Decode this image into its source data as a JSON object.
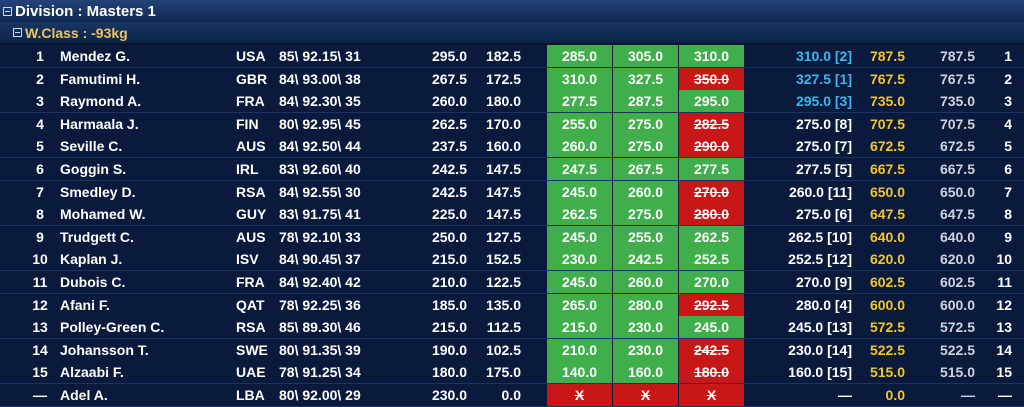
{
  "header": {
    "division": "Division : Masters 1",
    "weight_class": "W.Class : -93kg"
  },
  "table": {
    "rows": [
      {
        "rank": "1",
        "name": "Mendez G.",
        "country": "USA",
        "info": "85\\ 92.15\\ 31",
        "squat": "295.0",
        "bench": "182.5",
        "deadlift": [
          {
            "text": "285.0",
            "result": "good"
          },
          {
            "text": "305.0",
            "result": "good"
          },
          {
            "text": "310.0",
            "result": "good"
          }
        ],
        "best": "310.0 [2]",
        "highlight": true,
        "total": "787.5",
        "total2": "787.5",
        "place": "1"
      },
      {
        "rank": "2",
        "name": "Famutimi H.",
        "country": "GBR",
        "info": "84\\ 93.00\\ 38",
        "squat": "267.5",
        "bench": "172.5",
        "deadlift": [
          {
            "text": "310.0",
            "result": "good"
          },
          {
            "text": "327.5",
            "result": "good"
          },
          {
            "text": "350.0",
            "result": "fail"
          }
        ],
        "best": "327.5 [1]",
        "highlight": true,
        "total": "767.5",
        "total2": "767.5",
        "place": "2"
      },
      {
        "rank": "3",
        "name": "Raymond A.",
        "country": "FRA",
        "info": "84\\ 92.30\\ 35",
        "squat": "260.0",
        "bench": "180.0",
        "deadlift": [
          {
            "text": "277.5",
            "result": "good"
          },
          {
            "text": "287.5",
            "result": "good"
          },
          {
            "text": "295.0",
            "result": "good"
          }
        ],
        "best": "295.0 [3]",
        "highlight": true,
        "total": "735.0",
        "total2": "735.0",
        "place": "3"
      },
      {
        "rank": "4",
        "name": "Harmaala J.",
        "country": "FIN",
        "info": "80\\ 92.95\\ 45",
        "squat": "262.5",
        "bench": "170.0",
        "deadlift": [
          {
            "text": "255.0",
            "result": "good"
          },
          {
            "text": "275.0",
            "result": "good"
          },
          {
            "text": "282.5",
            "result": "fail"
          }
        ],
        "best": "275.0 [8]",
        "highlight": false,
        "total": "707.5",
        "total2": "707.5",
        "place": "4"
      },
      {
        "rank": "5",
        "name": "Seville C.",
        "country": "AUS",
        "info": "84\\ 92.50\\ 44",
        "squat": "237.5",
        "bench": "160.0",
        "deadlift": [
          {
            "text": "260.0",
            "result": "good"
          },
          {
            "text": "275.0",
            "result": "good"
          },
          {
            "text": "290.0",
            "result": "fail"
          }
        ],
        "best": "275.0 [7]",
        "highlight": false,
        "total": "672.5",
        "total2": "672.5",
        "place": "5"
      },
      {
        "rank": "6",
        "name": "Goggin S.",
        "country": "IRL",
        "info": "83\\ 92.60\\ 40",
        "squat": "242.5",
        "bench": "147.5",
        "deadlift": [
          {
            "text": "247.5",
            "result": "good"
          },
          {
            "text": "267.5",
            "result": "good"
          },
          {
            "text": "277.5",
            "result": "good"
          }
        ],
        "best": "277.5 [5]",
        "highlight": false,
        "total": "667.5",
        "total2": "667.5",
        "place": "6"
      },
      {
        "rank": "7",
        "name": "Smedley D.",
        "country": "RSA",
        "info": "84\\ 92.55\\ 30",
        "squat": "242.5",
        "bench": "147.5",
        "deadlift": [
          {
            "text": "245.0",
            "result": "good"
          },
          {
            "text": "260.0",
            "result": "good"
          },
          {
            "text": "270.0",
            "result": "fail"
          }
        ],
        "best": "260.0 [11]",
        "highlight": false,
        "total": "650.0",
        "total2": "650.0",
        "place": "7"
      },
      {
        "rank": "8",
        "name": "Mohamed W.",
        "country": "GUY",
        "info": "83\\ 91.75\\ 41",
        "squat": "225.0",
        "bench": "147.5",
        "deadlift": [
          {
            "text": "262.5",
            "result": "good"
          },
          {
            "text": "275.0",
            "result": "good"
          },
          {
            "text": "280.0",
            "result": "fail"
          }
        ],
        "best": "275.0 [6]",
        "highlight": false,
        "total": "647.5",
        "total2": "647.5",
        "place": "8"
      },
      {
        "rank": "9",
        "name": "Trudgett C.",
        "country": "AUS",
        "info": "78\\ 92.10\\ 33",
        "squat": "250.0",
        "bench": "127.5",
        "deadlift": [
          {
            "text": "245.0",
            "result": "good"
          },
          {
            "text": "255.0",
            "result": "good"
          },
          {
            "text": "262.5",
            "result": "good"
          }
        ],
        "best": "262.5 [10]",
        "highlight": false,
        "total": "640.0",
        "total2": "640.0",
        "place": "9"
      },
      {
        "rank": "10",
        "name": "Kaplan J.",
        "country": "ISV",
        "info": "84\\ 90.45\\ 37",
        "squat": "215.0",
        "bench": "152.5",
        "deadlift": [
          {
            "text": "230.0",
            "result": "good"
          },
          {
            "text": "242.5",
            "result": "good"
          },
          {
            "text": "252.5",
            "result": "good"
          }
        ],
        "best": "252.5 [12]",
        "highlight": false,
        "total": "620.0",
        "total2": "620.0",
        "place": "10"
      },
      {
        "rank": "11",
        "name": "Dubois C.",
        "country": "FRA",
        "info": "84\\ 92.40\\ 42",
        "squat": "210.0",
        "bench": "122.5",
        "deadlift": [
          {
            "text": "245.0",
            "result": "good"
          },
          {
            "text": "260.0",
            "result": "good"
          },
          {
            "text": "270.0",
            "result": "good"
          }
        ],
        "best": "270.0 [9]",
        "highlight": false,
        "total": "602.5",
        "total2": "602.5",
        "place": "11"
      },
      {
        "rank": "12",
        "name": "Afani F.",
        "country": "QAT",
        "info": "78\\ 92.25\\ 36",
        "squat": "185.0",
        "bench": "135.0",
        "deadlift": [
          {
            "text": "265.0",
            "result": "good"
          },
          {
            "text": "280.0",
            "result": "good"
          },
          {
            "text": "292.5",
            "result": "fail"
          }
        ],
        "best": "280.0 [4]",
        "highlight": false,
        "total": "600.0",
        "total2": "600.0",
        "place": "12"
      },
      {
        "rank": "13",
        "name": "Polley-Green C.",
        "country": "RSA",
        "info": "85\\ 89.30\\ 46",
        "squat": "215.0",
        "bench": "112.5",
        "deadlift": [
          {
            "text": "215.0",
            "result": "good"
          },
          {
            "text": "230.0",
            "result": "good"
          },
          {
            "text": "245.0",
            "result": "good"
          }
        ],
        "best": "245.0 [13]",
        "highlight": false,
        "total": "572.5",
        "total2": "572.5",
        "place": "13"
      },
      {
        "rank": "14",
        "name": "Johansson T.",
        "country": "SWE",
        "info": "80\\ 91.35\\ 39",
        "squat": "190.0",
        "bench": "102.5",
        "deadlift": [
          {
            "text": "210.0",
            "result": "good"
          },
          {
            "text": "230.0",
            "result": "good"
          },
          {
            "text": "242.5",
            "result": "fail"
          }
        ],
        "best": "230.0 [14]",
        "highlight": false,
        "total": "522.5",
        "total2": "522.5",
        "place": "14"
      },
      {
        "rank": "15",
        "name": "Alzaabi F.",
        "country": "UAE",
        "info": "78\\ 91.25\\ 34",
        "squat": "180.0",
        "bench": "175.0",
        "deadlift": [
          {
            "text": "140.0",
            "result": "good"
          },
          {
            "text": "160.0",
            "result": "good"
          },
          {
            "text": "180.0",
            "result": "fail"
          }
        ],
        "best": "160.0 [15]",
        "highlight": false,
        "total": "515.0",
        "total2": "515.0",
        "place": "15"
      },
      {
        "rank": "—",
        "name": "Adel A.",
        "country": "LBA",
        "info": "80\\ 92.00\\ 29",
        "squat": "230.0",
        "bench": "0.0",
        "deadlift": [
          {
            "text": "X",
            "result": "fail"
          },
          {
            "text": "X",
            "result": "fail"
          },
          {
            "text": "X",
            "result": "fail"
          }
        ],
        "best": "—",
        "highlight": false,
        "total": "0.0",
        "total2": "—",
        "place": "—"
      }
    ]
  }
}
